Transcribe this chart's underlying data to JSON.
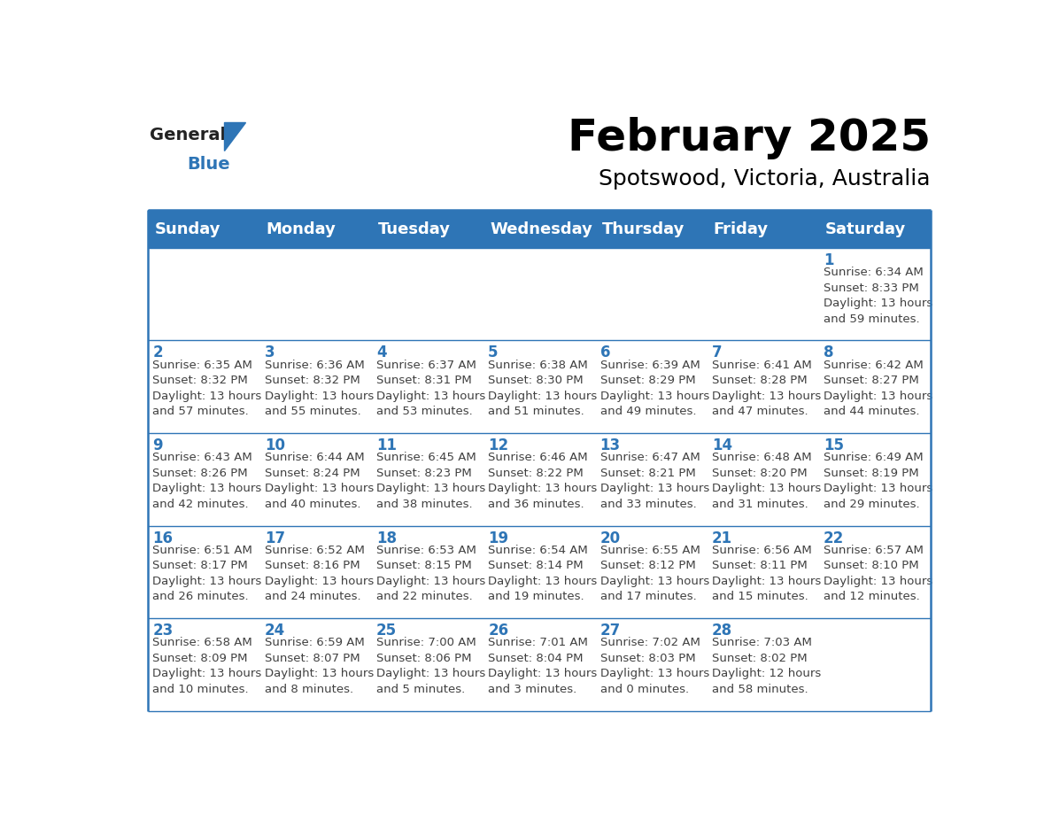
{
  "title": "February 2025",
  "subtitle": "Spotswood, Victoria, Australia",
  "header_bg": "#2E75B6",
  "header_text_color": "#FFFFFF",
  "cell_bg": "#FFFFFF",
  "cell_border_color": "#2E75B6",
  "day_number_color": "#2E75B6",
  "cell_text_color": "#404040",
  "days_of_week": [
    "Sunday",
    "Monday",
    "Tuesday",
    "Wednesday",
    "Thursday",
    "Friday",
    "Saturday"
  ],
  "weeks": [
    [
      {
        "day": null,
        "info": null
      },
      {
        "day": null,
        "info": null
      },
      {
        "day": null,
        "info": null
      },
      {
        "day": null,
        "info": null
      },
      {
        "day": null,
        "info": null
      },
      {
        "day": null,
        "info": null
      },
      {
        "day": 1,
        "info": "Sunrise: 6:34 AM\nSunset: 8:33 PM\nDaylight: 13 hours\nand 59 minutes."
      }
    ],
    [
      {
        "day": 2,
        "info": "Sunrise: 6:35 AM\nSunset: 8:32 PM\nDaylight: 13 hours\nand 57 minutes."
      },
      {
        "day": 3,
        "info": "Sunrise: 6:36 AM\nSunset: 8:32 PM\nDaylight: 13 hours\nand 55 minutes."
      },
      {
        "day": 4,
        "info": "Sunrise: 6:37 AM\nSunset: 8:31 PM\nDaylight: 13 hours\nand 53 minutes."
      },
      {
        "day": 5,
        "info": "Sunrise: 6:38 AM\nSunset: 8:30 PM\nDaylight: 13 hours\nand 51 minutes."
      },
      {
        "day": 6,
        "info": "Sunrise: 6:39 AM\nSunset: 8:29 PM\nDaylight: 13 hours\nand 49 minutes."
      },
      {
        "day": 7,
        "info": "Sunrise: 6:41 AM\nSunset: 8:28 PM\nDaylight: 13 hours\nand 47 minutes."
      },
      {
        "day": 8,
        "info": "Sunrise: 6:42 AM\nSunset: 8:27 PM\nDaylight: 13 hours\nand 44 minutes."
      }
    ],
    [
      {
        "day": 9,
        "info": "Sunrise: 6:43 AM\nSunset: 8:26 PM\nDaylight: 13 hours\nand 42 minutes."
      },
      {
        "day": 10,
        "info": "Sunrise: 6:44 AM\nSunset: 8:24 PM\nDaylight: 13 hours\nand 40 minutes."
      },
      {
        "day": 11,
        "info": "Sunrise: 6:45 AM\nSunset: 8:23 PM\nDaylight: 13 hours\nand 38 minutes."
      },
      {
        "day": 12,
        "info": "Sunrise: 6:46 AM\nSunset: 8:22 PM\nDaylight: 13 hours\nand 36 minutes."
      },
      {
        "day": 13,
        "info": "Sunrise: 6:47 AM\nSunset: 8:21 PM\nDaylight: 13 hours\nand 33 minutes."
      },
      {
        "day": 14,
        "info": "Sunrise: 6:48 AM\nSunset: 8:20 PM\nDaylight: 13 hours\nand 31 minutes."
      },
      {
        "day": 15,
        "info": "Sunrise: 6:49 AM\nSunset: 8:19 PM\nDaylight: 13 hours\nand 29 minutes."
      }
    ],
    [
      {
        "day": 16,
        "info": "Sunrise: 6:51 AM\nSunset: 8:17 PM\nDaylight: 13 hours\nand 26 minutes."
      },
      {
        "day": 17,
        "info": "Sunrise: 6:52 AM\nSunset: 8:16 PM\nDaylight: 13 hours\nand 24 minutes."
      },
      {
        "day": 18,
        "info": "Sunrise: 6:53 AM\nSunset: 8:15 PM\nDaylight: 13 hours\nand 22 minutes."
      },
      {
        "day": 19,
        "info": "Sunrise: 6:54 AM\nSunset: 8:14 PM\nDaylight: 13 hours\nand 19 minutes."
      },
      {
        "day": 20,
        "info": "Sunrise: 6:55 AM\nSunset: 8:12 PM\nDaylight: 13 hours\nand 17 minutes."
      },
      {
        "day": 21,
        "info": "Sunrise: 6:56 AM\nSunset: 8:11 PM\nDaylight: 13 hours\nand 15 minutes."
      },
      {
        "day": 22,
        "info": "Sunrise: 6:57 AM\nSunset: 8:10 PM\nDaylight: 13 hours\nand 12 minutes."
      }
    ],
    [
      {
        "day": 23,
        "info": "Sunrise: 6:58 AM\nSunset: 8:09 PM\nDaylight: 13 hours\nand 10 minutes."
      },
      {
        "day": 24,
        "info": "Sunrise: 6:59 AM\nSunset: 8:07 PM\nDaylight: 13 hours\nand 8 minutes."
      },
      {
        "day": 25,
        "info": "Sunrise: 7:00 AM\nSunset: 8:06 PM\nDaylight: 13 hours\nand 5 minutes."
      },
      {
        "day": 26,
        "info": "Sunrise: 7:01 AM\nSunset: 8:04 PM\nDaylight: 13 hours\nand 3 minutes."
      },
      {
        "day": 27,
        "info": "Sunrise: 7:02 AM\nSunset: 8:03 PM\nDaylight: 13 hours\nand 0 minutes."
      },
      {
        "day": 28,
        "info": "Sunrise: 7:03 AM\nSunset: 8:02 PM\nDaylight: 12 hours\nand 58 minutes."
      },
      {
        "day": null,
        "info": null
      }
    ]
  ],
  "logo_general_color": "#222222",
  "logo_blue_color": "#2E75B6",
  "title_fontsize": 36,
  "subtitle_fontsize": 18,
  "header_fontsize": 13,
  "day_number_fontsize": 12,
  "cell_info_fontsize": 9.5
}
